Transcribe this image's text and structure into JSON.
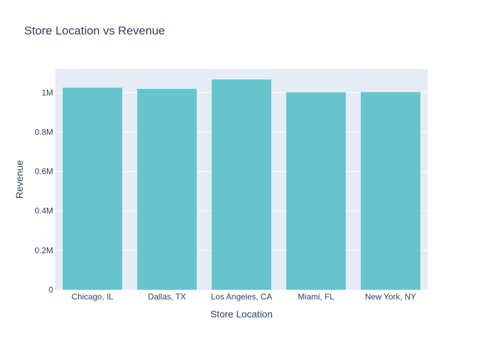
{
  "chart_data": {
    "type": "bar",
    "title": "Store Location vs Revenue",
    "xlabel": "Store Location",
    "ylabel": "Revenue",
    "categories": [
      "Chicago, IL",
      "Dallas, TX",
      "Los Angeles, CA",
      "Miami, FL",
      "New York, NY"
    ],
    "values": [
      1025000,
      1019000,
      1067000,
      1002000,
      1003000
    ],
    "ylim": [
      0,
      1120000
    ],
    "yticks": [
      0,
      200000,
      400000,
      600000,
      800000,
      1000000
    ],
    "ytick_labels": [
      "0",
      "0.2M",
      "0.4M",
      "0.6M",
      "0.8M",
      "1M"
    ],
    "grid": true,
    "colors": {
      "bar": "#67c4cc",
      "plot_bg": "#e5ecf6",
      "grid": "#ffffff",
      "text": "#2a3f5f"
    }
  }
}
